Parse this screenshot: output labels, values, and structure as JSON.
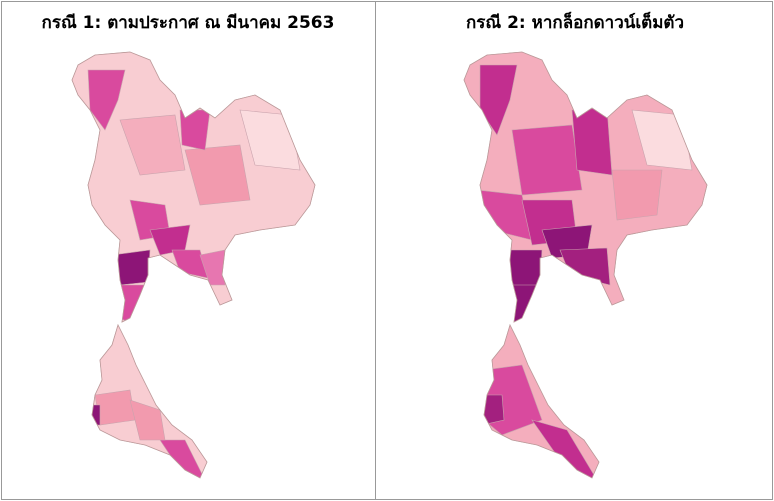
{
  "panels": [
    {
      "title": "กรณี 1: ตามประกาศ ณ มีนาคม 2563"
    },
    {
      "title": "กรณี 2:  หากล็อกดาวน์เต็มตัว"
    }
  ]
}
